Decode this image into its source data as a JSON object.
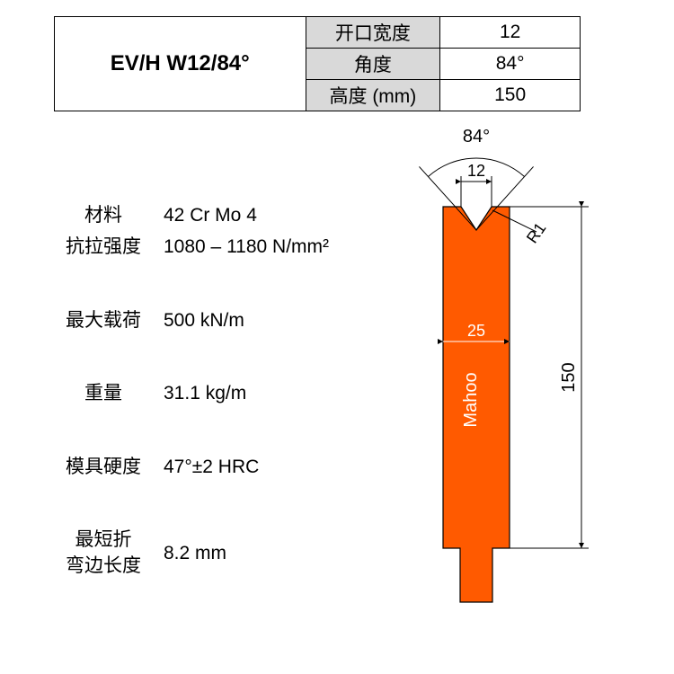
{
  "model": "EV/H W12/84°",
  "table": {
    "rows": [
      {
        "label": "开口宽度",
        "value": "12"
      },
      {
        "label": "角度",
        "value": "84°"
      },
      {
        "label": "高度 (mm)",
        "value": "150"
      }
    ]
  },
  "specs": {
    "material_label": "材料",
    "material_value": "42 Cr Mo 4",
    "tensile_label": "抗拉强度",
    "tensile_value": "1080 – 1180 N/mm²",
    "maxload_label": "最大载荷",
    "maxload_value": "500 kN/m",
    "weight_label": "重量",
    "weight_value": "31.1 kg/m",
    "hardness_label": "模具硬度",
    "hardness_value": "47°±2 HRC",
    "minbend_label1": "最短折",
    "minbend_label2": "弯边长度",
    "minbend_value": "8.2 mm"
  },
  "diagram": {
    "angle_label": "84°",
    "opening_label": "12",
    "radius_label": "R1",
    "width_label": "25",
    "height_label": "150",
    "brand": "Mahoo",
    "colors": {
      "tool_fill": "#ff5a00",
      "stroke": "#000000",
      "text_on_tool": "#ffffff"
    },
    "geometry": {
      "body_width": 74,
      "body_height": 380,
      "notch_width": 34,
      "notch_depth": 26,
      "tang_width": 36,
      "tang_height": 60,
      "angle_arc_r": 80
    }
  }
}
